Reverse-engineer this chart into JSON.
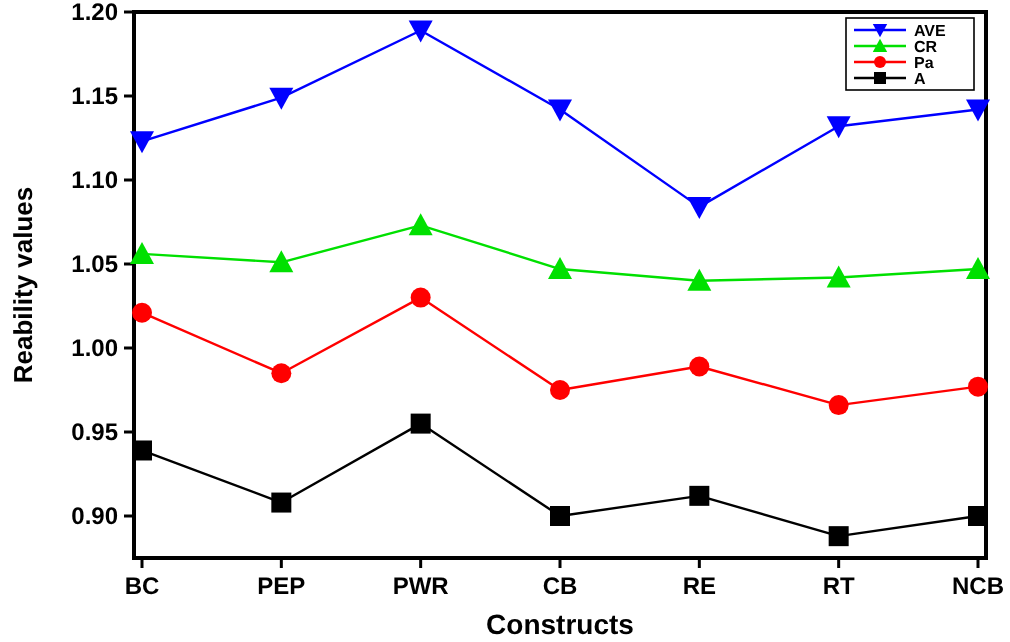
{
  "chart_data": {
    "type": "line",
    "xlabel": "Constructs",
    "ylabel": "Reability values",
    "categories": [
      "BC",
      "PEP",
      "PWR",
      "CB",
      "RE",
      "RT",
      "NCB"
    ],
    "series": [
      {
        "name": "AVE",
        "color": "#0000ff",
        "marker": "triangle-down",
        "values": [
          1.123,
          1.149,
          1.189,
          1.142,
          1.084,
          1.132,
          1.142
        ]
      },
      {
        "name": "CR",
        "color": "#00e000",
        "marker": "triangle",
        "values": [
          1.056,
          1.051,
          1.073,
          1.047,
          1.04,
          1.042,
          1.047
        ]
      },
      {
        "name": "Pa",
        "color": "#ff0000",
        "marker": "circle",
        "values": [
          1.021,
          0.985,
          1.03,
          0.975,
          0.989,
          0.966,
          0.977
        ]
      },
      {
        "name": "A",
        "color": "#000000",
        "marker": "square",
        "values": [
          0.939,
          0.908,
          0.955,
          0.9,
          0.912,
          0.888,
          0.9
        ]
      }
    ],
    "ylim": [
      0.875,
      1.2
    ],
    "yticks": [
      {
        "value": 0.9,
        "label": "0.90"
      },
      {
        "value": 0.95,
        "label": "0.95"
      },
      {
        "value": 1.0,
        "label": "1.00"
      },
      {
        "value": 1.05,
        "label": "1.05"
      },
      {
        "value": 1.1,
        "label": "1.10"
      },
      {
        "value": 1.15,
        "label": "1.15"
      },
      {
        "value": 1.2,
        "label": "1.20"
      }
    ],
    "grid": false,
    "legend": "top right",
    "line_style": "solid"
  }
}
